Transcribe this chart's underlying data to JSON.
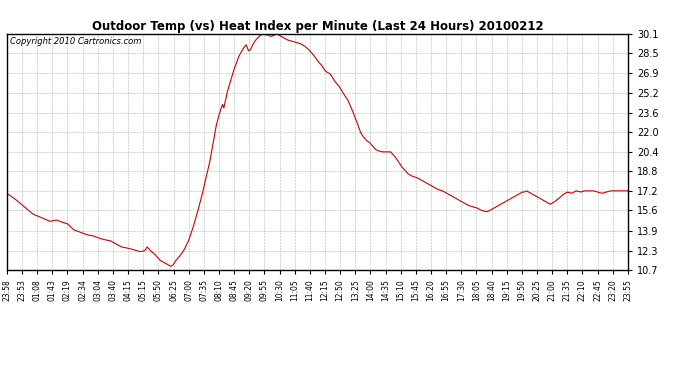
{
  "title": "Outdoor Temp (vs) Heat Index per Minute (Last 24 Hours) 20100212",
  "copyright": "Copyright 2010 Cartronics.com",
  "line_color": "#cc0000",
  "bg_color": "#ffffff",
  "grid_color": "#aaaaaa",
  "yticks": [
    10.7,
    12.3,
    13.9,
    15.6,
    17.2,
    18.8,
    20.4,
    22.0,
    23.6,
    25.2,
    26.9,
    28.5,
    30.1
  ],
  "ymin": 10.7,
  "ymax": 30.1,
  "xtick_labels": [
    "23:58",
    "23:53",
    "01:08",
    "01:43",
    "02:19",
    "02:34",
    "03:04",
    "03:40",
    "04:15",
    "05:15",
    "05:50",
    "06:25",
    "07:00",
    "07:35",
    "08:10",
    "08:45",
    "09:20",
    "09:55",
    "10:30",
    "11:05",
    "11:40",
    "12:15",
    "12:50",
    "13:25",
    "14:00",
    "14:35",
    "15:10",
    "15:45",
    "16:20",
    "16:55",
    "17:30",
    "18:05",
    "18:40",
    "19:15",
    "19:50",
    "20:25",
    "21:00",
    "21:35",
    "22:10",
    "22:45",
    "23:20",
    "23:55"
  ],
  "curve_points": [
    [
      0,
      17.0
    ],
    [
      20,
      16.5
    ],
    [
      40,
      15.9
    ],
    [
      60,
      15.3
    ],
    [
      80,
      15.0
    ],
    [
      100,
      14.7
    ],
    [
      115,
      14.8
    ],
    [
      130,
      14.6
    ],
    [
      140,
      14.5
    ],
    [
      155,
      14.0
    ],
    [
      170,
      13.8
    ],
    [
      185,
      13.6
    ],
    [
      200,
      13.5
    ],
    [
      215,
      13.3
    ],
    [
      225,
      13.2
    ],
    [
      240,
      13.1
    ],
    [
      255,
      12.8
    ],
    [
      265,
      12.6
    ],
    [
      280,
      12.5
    ],
    [
      290,
      12.4
    ],
    [
      300,
      12.3
    ],
    [
      310,
      12.2
    ],
    [
      320,
      12.3
    ],
    [
      325,
      12.6
    ],
    [
      330,
      12.4
    ],
    [
      335,
      12.2
    ],
    [
      340,
      12.1
    ],
    [
      345,
      11.9
    ],
    [
      350,
      11.7
    ],
    [
      355,
      11.5
    ],
    [
      360,
      11.4
    ],
    [
      365,
      11.3
    ],
    [
      370,
      11.2
    ],
    [
      375,
      11.1
    ],
    [
      380,
      11.0
    ],
    [
      385,
      11.1
    ],
    [
      390,
      11.4
    ],
    [
      400,
      11.8
    ],
    [
      410,
      12.3
    ],
    [
      420,
      13.0
    ],
    [
      430,
      14.0
    ],
    [
      440,
      15.2
    ],
    [
      450,
      16.5
    ],
    [
      460,
      18.0
    ],
    [
      470,
      19.5
    ],
    [
      475,
      20.5
    ],
    [
      480,
      21.5
    ],
    [
      485,
      22.5
    ],
    [
      490,
      23.2
    ],
    [
      495,
      23.8
    ],
    [
      500,
      24.3
    ],
    [
      503,
      24.0
    ],
    [
      506,
      24.5
    ],
    [
      510,
      25.2
    ],
    [
      515,
      25.8
    ],
    [
      520,
      26.4
    ],
    [
      525,
      27.0
    ],
    [
      530,
      27.5
    ],
    [
      535,
      28.0
    ],
    [
      540,
      28.4
    ],
    [
      545,
      28.7
    ],
    [
      550,
      29.0
    ],
    [
      555,
      29.2
    ],
    [
      560,
      28.7
    ],
    [
      565,
      28.8
    ],
    [
      570,
      29.2
    ],
    [
      575,
      29.5
    ],
    [
      580,
      29.7
    ],
    [
      585,
      29.9
    ],
    [
      590,
      30.0
    ],
    [
      595,
      30.1
    ],
    [
      600,
      30.0
    ],
    [
      605,
      30.0
    ],
    [
      610,
      29.9
    ],
    [
      615,
      29.9
    ],
    [
      620,
      30.0
    ],
    [
      625,
      30.1
    ],
    [
      630,
      30.0
    ],
    [
      635,
      29.9
    ],
    [
      640,
      29.8
    ],
    [
      645,
      29.7
    ],
    [
      650,
      29.6
    ],
    [
      660,
      29.5
    ],
    [
      670,
      29.4
    ],
    [
      680,
      29.3
    ],
    [
      690,
      29.1
    ],
    [
      700,
      28.8
    ],
    [
      710,
      28.4
    ],
    [
      720,
      27.9
    ],
    [
      730,
      27.5
    ],
    [
      735,
      27.2
    ],
    [
      740,
      27.0
    ],
    [
      750,
      26.8
    ],
    [
      755,
      26.5
    ],
    [
      760,
      26.2
    ],
    [
      770,
      25.8
    ],
    [
      775,
      25.5
    ],
    [
      780,
      25.2
    ],
    [
      790,
      24.7
    ],
    [
      795,
      24.3
    ],
    [
      800,
      23.9
    ],
    [
      810,
      23.0
    ],
    [
      815,
      22.5
    ],
    [
      820,
      22.0
    ],
    [
      825,
      21.7
    ],
    [
      830,
      21.5
    ],
    [
      835,
      21.3
    ],
    [
      840,
      21.2
    ],
    [
      845,
      21.0
    ],
    [
      850,
      20.8
    ],
    [
      855,
      20.6
    ],
    [
      860,
      20.5
    ],
    [
      870,
      20.4
    ],
    [
      880,
      20.4
    ],
    [
      890,
      20.4
    ],
    [
      895,
      20.2
    ],
    [
      900,
      20.0
    ],
    [
      910,
      19.5
    ],
    [
      915,
      19.2
    ],
    [
      920,
      19.0
    ],
    [
      925,
      18.8
    ],
    [
      930,
      18.6
    ],
    [
      940,
      18.4
    ],
    [
      950,
      18.3
    ],
    [
      960,
      18.1
    ],
    [
      970,
      17.9
    ],
    [
      980,
      17.7
    ],
    [
      990,
      17.5
    ],
    [
      1000,
      17.3
    ],
    [
      1010,
      17.2
    ],
    [
      1020,
      17.0
    ],
    [
      1030,
      16.8
    ],
    [
      1040,
      16.6
    ],
    [
      1050,
      16.4
    ],
    [
      1060,
      16.2
    ],
    [
      1070,
      16.0
    ],
    [
      1080,
      15.9
    ],
    [
      1090,
      15.8
    ],
    [
      1095,
      15.7
    ],
    [
      1100,
      15.6
    ],
    [
      1110,
      15.5
    ],
    [
      1115,
      15.5
    ],
    [
      1120,
      15.6
    ],
    [
      1130,
      15.8
    ],
    [
      1140,
      16.0
    ],
    [
      1150,
      16.2
    ],
    [
      1160,
      16.4
    ],
    [
      1165,
      16.5
    ],
    [
      1170,
      16.6
    ],
    [
      1175,
      16.7
    ],
    [
      1180,
      16.8
    ],
    [
      1185,
      16.9
    ],
    [
      1190,
      17.0
    ],
    [
      1195,
      17.1
    ],
    [
      1200,
      17.1
    ],
    [
      1205,
      17.2
    ],
    [
      1210,
      17.1
    ],
    [
      1215,
      17.0
    ],
    [
      1220,
      16.9
    ],
    [
      1225,
      16.8
    ],
    [
      1230,
      16.7
    ],
    [
      1235,
      16.6
    ],
    [
      1240,
      16.5
    ],
    [
      1245,
      16.4
    ],
    [
      1250,
      16.3
    ],
    [
      1255,
      16.2
    ],
    [
      1260,
      16.1
    ],
    [
      1270,
      16.3
    ],
    [
      1280,
      16.6
    ],
    [
      1290,
      16.9
    ],
    [
      1295,
      17.0
    ],
    [
      1300,
      17.1
    ],
    [
      1310,
      17.0
    ],
    [
      1315,
      17.1
    ],
    [
      1320,
      17.2
    ],
    [
      1330,
      17.1
    ],
    [
      1340,
      17.2
    ],
    [
      1350,
      17.2
    ],
    [
      1360,
      17.2
    ],
    [
      1370,
      17.1
    ],
    [
      1380,
      17.0
    ],
    [
      1390,
      17.1
    ],
    [
      1400,
      17.2
    ],
    [
      1410,
      17.2
    ],
    [
      1420,
      17.2
    ],
    [
      1440,
      17.2
    ]
  ]
}
